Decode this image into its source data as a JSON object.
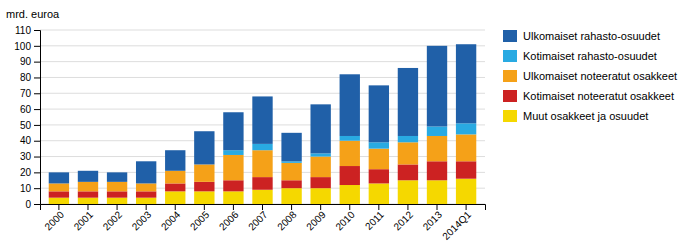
{
  "chart_data": {
    "type": "bar",
    "stacked": true,
    "ylabel": "mrd. euroa",
    "categories": [
      "2000",
      "2001",
      "2002",
      "2003",
      "2004",
      "2005",
      "2006",
      "2007",
      "2008",
      "2009",
      "2010",
      "2011",
      "2012",
      "2013",
      "2014Q1"
    ],
    "series": [
      {
        "name": "Muut osakkeet ja osuudet",
        "color": "#f5d800",
        "values": [
          4,
          4,
          4,
          4,
          8,
          8,
          8,
          9,
          10,
          10,
          12,
          13,
          15,
          15,
          16
        ]
      },
      {
        "name": "Kotimaiset noteeratut osakkeet",
        "color": "#cc2222",
        "values": [
          4,
          4,
          4,
          4,
          5,
          6,
          7,
          8,
          5,
          7,
          12,
          9,
          10,
          12,
          11
        ]
      },
      {
        "name": "Ulkomaiset noteeratut osakkeet",
        "color": "#f5a118",
        "values": [
          5,
          6,
          6,
          5,
          8,
          11,
          16,
          17,
          11,
          13,
          16,
          13,
          14,
          16,
          17
        ]
      },
      {
        "name": "Kotimaiset rahasto-osuudet",
        "color": "#29aae2",
        "values": [
          0,
          0,
          0,
          0,
          0,
          0,
          3,
          4,
          1,
          2,
          3,
          4,
          4,
          6,
          7
        ]
      },
      {
        "name": "Ulkomaiset rahasto-osuudet",
        "color": "#2060a8",
        "values": [
          7,
          7,
          6,
          14,
          13,
          21,
          24,
          30,
          18,
          31,
          39,
          36,
          43,
          51,
          50
        ]
      }
    ],
    "ylim": [
      0,
      110
    ],
    "yticks": [
      0,
      10,
      20,
      30,
      40,
      50,
      60,
      70,
      80,
      90,
      100,
      110
    ],
    "grid": true,
    "legend": "right"
  }
}
